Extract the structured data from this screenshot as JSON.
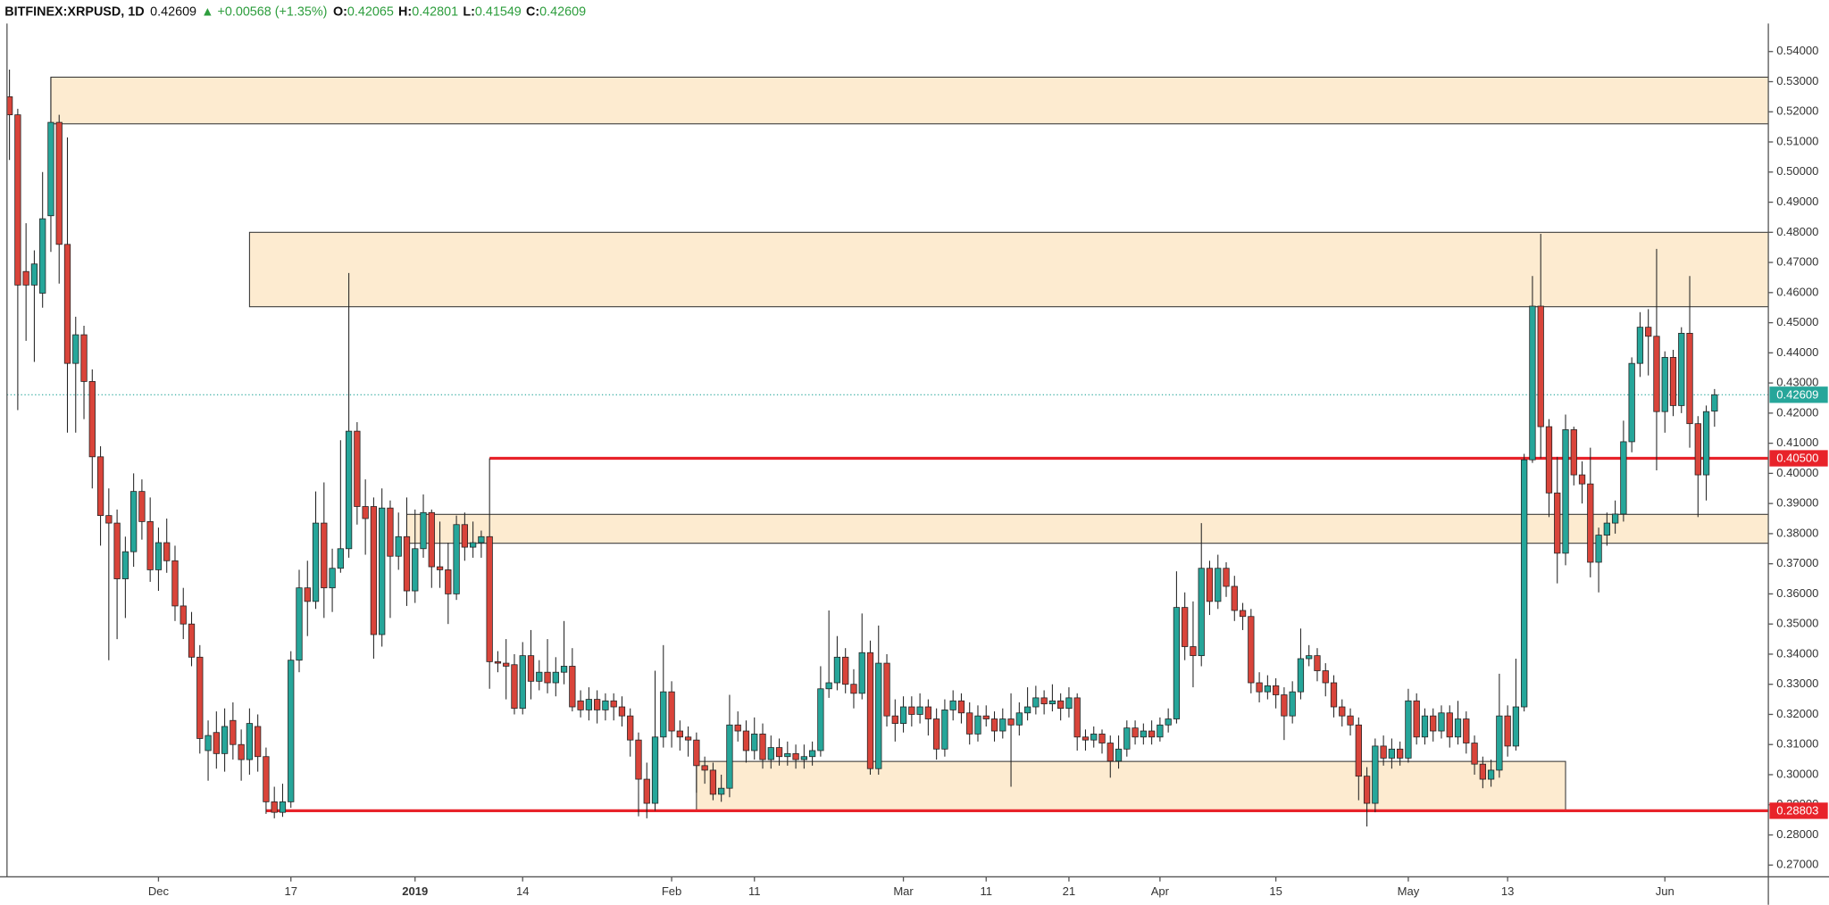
{
  "chart_data": {
    "type": "candlestick",
    "title": "BITFINEX:XRPUSD, 1D",
    "change": "▲ +0.00568 (+1.35%)",
    "ohlc_keys": [
      "O:",
      "H:",
      "L:",
      "C:"
    ],
    "up_color": "#26a69a",
    "down_color": "#d9443a",
    "zone_color": "#fdebd0",
    "level_color": "#e8232a",
    "grid": false,
    "xlim": [
      -0.3,
      212.5
    ],
    "ylim": [
      0.2661,
      0.5493
    ],
    "xticks": [
      {
        "value": 18,
        "label": "Dec"
      },
      {
        "value": 34,
        "label": "17"
      },
      {
        "value": 49,
        "label": "2019",
        "bold": true
      },
      {
        "value": 62,
        "label": "14"
      },
      {
        "value": 80,
        "label": "Feb"
      },
      {
        "value": 90,
        "label": "11"
      },
      {
        "value": 108,
        "label": "Mar"
      },
      {
        "value": 118,
        "label": "11"
      },
      {
        "value": 128,
        "label": "21"
      },
      {
        "value": 139,
        "label": "Apr"
      },
      {
        "value": 153,
        "label": "15"
      },
      {
        "value": 169,
        "label": "May"
      },
      {
        "value": 181,
        "label": "13"
      },
      {
        "value": 200,
        "label": "Jun"
      }
    ],
    "yticks": [
      {
        "value": 0.27,
        "label": "0.27000"
      },
      {
        "value": 0.28,
        "label": "0.28000"
      },
      {
        "value": 0.29,
        "label": "0.29000"
      },
      {
        "value": 0.3,
        "label": "0.30000"
      },
      {
        "value": 0.31,
        "label": "0.31000"
      },
      {
        "value": 0.32,
        "label": "0.32000"
      },
      {
        "value": 0.33,
        "label": "0.33000"
      },
      {
        "value": 0.34,
        "label": "0.34000"
      },
      {
        "value": 0.35,
        "label": "0.35000"
      },
      {
        "value": 0.36,
        "label": "0.36000"
      },
      {
        "value": 0.37,
        "label": "0.37000"
      },
      {
        "value": 0.38,
        "label": "0.38000"
      },
      {
        "value": 0.39,
        "label": "0.39000"
      },
      {
        "value": 0.4,
        "label": "0.40000"
      },
      {
        "value": 0.41,
        "label": "0.41000"
      },
      {
        "value": 0.42,
        "label": "0.42000"
      },
      {
        "value": 0.43,
        "label": "0.43000"
      },
      {
        "value": 0.44,
        "label": "0.44000"
      },
      {
        "value": 0.45,
        "label": "0.45000"
      },
      {
        "value": 0.46,
        "label": "0.46000"
      },
      {
        "value": 0.47,
        "label": "0.47000"
      },
      {
        "value": 0.48,
        "label": "0.48000"
      },
      {
        "value": 0.49,
        "label": "0.49000"
      },
      {
        "value": 0.5,
        "label": "0.50000"
      },
      {
        "value": 0.51,
        "label": "0.51000"
      },
      {
        "value": 0.52,
        "label": "0.52000"
      },
      {
        "value": 0.53,
        "label": "0.53000"
      },
      {
        "value": 0.54,
        "label": "0.54000"
      }
    ],
    "zones": [
      {
        "low": 0.516,
        "high": 0.5315,
        "start": 5
      },
      {
        "low": 0.4553,
        "high": 0.48,
        "start": 29
      },
      {
        "low": 0.3768,
        "high": 0.3864,
        "start": 48
      },
      {
        "low": 0.28803,
        "high": 0.3044,
        "start": 83,
        "end": 188
      }
    ],
    "levels": [
      {
        "value": 0.405,
        "label": "0.40500",
        "start": 58
      },
      {
        "value": 0.28803,
        "label": "0.28803",
        "start": 31
      }
    ],
    "ohlc": [
      [
        0.525,
        0.534,
        0.504,
        0.519
      ],
      [
        0.519,
        0.521,
        0.421,
        0.4625
      ],
      [
        0.467,
        0.483,
        0.444,
        0.4625
      ],
      [
        0.4625,
        0.474,
        0.437,
        0.4695
      ],
      [
        0.4598,
        0.5,
        0.455,
        0.4845
      ],
      [
        0.4855,
        0.5315,
        0.4735,
        0.5165
      ],
      [
        0.5165,
        0.519,
        0.463,
        0.476
      ],
      [
        0.476,
        0.5115,
        0.4135,
        0.4365
      ],
      [
        0.4365,
        0.452,
        0.4135,
        0.446
      ],
      [
        0.446,
        0.449,
        0.418,
        0.4305
      ],
      [
        0.4305,
        0.4345,
        0.395,
        0.4055
      ],
      [
        0.4055,
        0.409,
        0.376,
        0.386
      ],
      [
        0.386,
        0.395,
        0.338,
        0.3835
      ],
      [
        0.3835,
        0.388,
        0.345,
        0.365
      ],
      [
        0.365,
        0.379,
        0.352,
        0.374
      ],
      [
        0.374,
        0.4,
        0.369,
        0.394
      ],
      [
        0.394,
        0.398,
        0.378,
        0.384
      ],
      [
        0.384,
        0.392,
        0.364,
        0.368
      ],
      [
        0.368,
        0.382,
        0.361,
        0.377
      ],
      [
        0.377,
        0.385,
        0.367,
        0.371
      ],
      [
        0.371,
        0.376,
        0.351,
        0.356
      ],
      [
        0.356,
        0.362,
        0.345,
        0.35
      ],
      [
        0.35,
        0.354,
        0.336,
        0.339
      ],
      [
        0.339,
        0.343,
        0.307,
        0.312
      ],
      [
        0.308,
        0.318,
        0.298,
        0.313
      ],
      [
        0.314,
        0.321,
        0.302,
        0.307
      ],
      [
        0.307,
        0.322,
        0.301,
        0.316
      ],
      [
        0.318,
        0.324,
        0.305,
        0.31
      ],
      [
        0.31,
        0.315,
        0.298,
        0.305
      ],
      [
        0.305,
        0.322,
        0.3,
        0.317
      ],
      [
        0.316,
        0.32,
        0.301,
        0.306
      ],
      [
        0.306,
        0.309,
        0.287,
        0.291
      ],
      [
        0.291,
        0.296,
        0.2855,
        0.2875
      ],
      [
        0.2875,
        0.297,
        0.286,
        0.291
      ],
      [
        0.291,
        0.341,
        0.289,
        0.338
      ],
      [
        0.338,
        0.368,
        0.334,
        0.362
      ],
      [
        0.362,
        0.371,
        0.346,
        0.3575
      ],
      [
        0.3575,
        0.394,
        0.355,
        0.3835
      ],
      [
        0.3835,
        0.397,
        0.352,
        0.362
      ],
      [
        0.362,
        0.375,
        0.354,
        0.3685
      ],
      [
        0.3685,
        0.411,
        0.367,
        0.375
      ],
      [
        0.375,
        0.4665,
        0.372,
        0.414
      ],
      [
        0.414,
        0.417,
        0.383,
        0.389
      ],
      [
        0.389,
        0.398,
        0.373,
        0.385
      ],
      [
        0.389,
        0.392,
        0.3385,
        0.3465
      ],
      [
        0.3465,
        0.395,
        0.3425,
        0.3885
      ],
      [
        0.3885,
        0.391,
        0.352,
        0.3725
      ],
      [
        0.3725,
        0.387,
        0.368,
        0.379
      ],
      [
        0.379,
        0.392,
        0.356,
        0.361
      ],
      [
        0.361,
        0.388,
        0.357,
        0.375
      ],
      [
        0.375,
        0.393,
        0.372,
        0.387
      ],
      [
        0.387,
        0.388,
        0.362,
        0.369
      ],
      [
        0.369,
        0.384,
        0.362,
        0.368
      ],
      [
        0.368,
        0.377,
        0.35,
        0.36
      ],
      [
        0.36,
        0.386,
        0.358,
        0.383
      ],
      [
        0.383,
        0.387,
        0.371,
        0.3755
      ],
      [
        0.3755,
        0.384,
        0.372,
        0.377
      ],
      [
        0.377,
        0.381,
        0.372,
        0.379
      ],
      [
        0.379,
        0.405,
        0.3285,
        0.3375
      ],
      [
        0.3375,
        0.341,
        0.334,
        0.337
      ],
      [
        0.337,
        0.345,
        0.325,
        0.336
      ],
      [
        0.3365,
        0.34,
        0.32,
        0.322
      ],
      [
        0.322,
        0.344,
        0.32,
        0.3395
      ],
      [
        0.3395,
        0.348,
        0.325,
        0.331
      ],
      [
        0.331,
        0.338,
        0.328,
        0.334
      ],
      [
        0.334,
        0.345,
        0.327,
        0.3305
      ],
      [
        0.3305,
        0.339,
        0.326,
        0.334
      ],
      [
        0.334,
        0.351,
        0.33,
        0.336
      ],
      [
        0.336,
        0.342,
        0.321,
        0.3225
      ],
      [
        0.3245,
        0.328,
        0.319,
        0.3215
      ],
      [
        0.3215,
        0.329,
        0.318,
        0.325
      ],
      [
        0.325,
        0.328,
        0.317,
        0.3215
      ],
      [
        0.3215,
        0.327,
        0.318,
        0.3245
      ],
      [
        0.3245,
        0.327,
        0.318,
        0.3225
      ],
      [
        0.3225,
        0.326,
        0.316,
        0.3195
      ],
      [
        0.3195,
        0.322,
        0.306,
        0.3115
      ],
      [
        0.3115,
        0.314,
        0.2862,
        0.2985
      ],
      [
        0.2985,
        0.304,
        0.2855,
        0.2905
      ],
      [
        0.2905,
        0.3345,
        0.288,
        0.3125
      ],
      [
        0.3125,
        0.343,
        0.309,
        0.3275
      ],
      [
        0.3275,
        0.331,
        0.309,
        0.3145
      ],
      [
        0.3145,
        0.318,
        0.308,
        0.3125
      ],
      [
        0.3125,
        0.316,
        0.306,
        0.3115
      ],
      [
        0.3115,
        0.314,
        0.294,
        0.303
      ],
      [
        0.303,
        0.306,
        0.297,
        0.3015
      ],
      [
        0.3015,
        0.304,
        0.2915,
        0.2935
      ],
      [
        0.2935,
        0.3,
        0.291,
        0.2955
      ],
      [
        0.2955,
        0.3265,
        0.2925,
        0.3165
      ],
      [
        0.3165,
        0.321,
        0.311,
        0.3145
      ],
      [
        0.3145,
        0.318,
        0.304,
        0.308
      ],
      [
        0.308,
        0.319,
        0.305,
        0.3135
      ],
      [
        0.3135,
        0.317,
        0.302,
        0.305
      ],
      [
        0.305,
        0.313,
        0.302,
        0.309
      ],
      [
        0.309,
        0.312,
        0.303,
        0.306
      ],
      [
        0.306,
        0.311,
        0.303,
        0.307
      ],
      [
        0.307,
        0.31,
        0.302,
        0.305
      ],
      [
        0.305,
        0.31,
        0.302,
        0.306
      ],
      [
        0.306,
        0.311,
        0.303,
        0.308
      ],
      [
        0.308,
        0.336,
        0.306,
        0.3285
      ],
      [
        0.3285,
        0.3545,
        0.3255,
        0.3305
      ],
      [
        0.3305,
        0.346,
        0.328,
        0.339
      ],
      [
        0.339,
        0.342,
        0.327,
        0.33
      ],
      [
        0.33,
        0.335,
        0.322,
        0.327
      ],
      [
        0.327,
        0.3535,
        0.325,
        0.3405
      ],
      [
        0.3405,
        0.3445,
        0.3,
        0.302
      ],
      [
        0.302,
        0.3495,
        0.3,
        0.337
      ],
      [
        0.337,
        0.34,
        0.316,
        0.3195
      ],
      [
        0.3195,
        0.325,
        0.311,
        0.317
      ],
      [
        0.317,
        0.326,
        0.314,
        0.3225
      ],
      [
        0.3225,
        0.326,
        0.316,
        0.32
      ],
      [
        0.32,
        0.327,
        0.317,
        0.3225
      ],
      [
        0.3225,
        0.325,
        0.313,
        0.3185
      ],
      [
        0.3185,
        0.322,
        0.305,
        0.3085
      ],
      [
        0.3085,
        0.325,
        0.306,
        0.3215
      ],
      [
        0.3215,
        0.328,
        0.318,
        0.3245
      ],
      [
        0.3245,
        0.327,
        0.317,
        0.3205
      ],
      [
        0.3205,
        0.324,
        0.31,
        0.3135
      ],
      [
        0.3135,
        0.323,
        0.311,
        0.3195
      ],
      [
        0.3195,
        0.323,
        0.316,
        0.3185
      ],
      [
        0.3185,
        0.321,
        0.311,
        0.3145
      ],
      [
        0.3145,
        0.322,
        0.312,
        0.3185
      ],
      [
        0.3185,
        0.327,
        0.296,
        0.3165
      ],
      [
        0.3165,
        0.324,
        0.313,
        0.3205
      ],
      [
        0.3205,
        0.329,
        0.318,
        0.3225
      ],
      [
        0.3225,
        0.3295,
        0.32,
        0.3255
      ],
      [
        0.3255,
        0.328,
        0.32,
        0.3235
      ],
      [
        0.3235,
        0.33,
        0.321,
        0.3245
      ],
      [
        0.3245,
        0.327,
        0.318,
        0.322
      ],
      [
        0.322,
        0.329,
        0.319,
        0.3255
      ],
      [
        0.3255,
        0.327,
        0.308,
        0.3125
      ],
      [
        0.3125,
        0.315,
        0.308,
        0.3115
      ],
      [
        0.3115,
        0.316,
        0.309,
        0.3135
      ],
      [
        0.3135,
        0.315,
        0.307,
        0.3105
      ],
      [
        0.3105,
        0.313,
        0.299,
        0.3045
      ],
      [
        0.3045,
        0.313,
        0.302,
        0.3085
      ],
      [
        0.3085,
        0.318,
        0.306,
        0.3155
      ],
      [
        0.3155,
        0.318,
        0.31,
        0.3125
      ],
      [
        0.3125,
        0.317,
        0.31,
        0.3145
      ],
      [
        0.3145,
        0.318,
        0.31,
        0.3125
      ],
      [
        0.3125,
        0.319,
        0.311,
        0.3165
      ],
      [
        0.3165,
        0.322,
        0.314,
        0.3185
      ],
      [
        0.3185,
        0.3675,
        0.317,
        0.3555
      ],
      [
        0.3555,
        0.3605,
        0.338,
        0.3425
      ],
      [
        0.3425,
        0.3575,
        0.329,
        0.3395
      ],
      [
        0.3395,
        0.3835,
        0.336,
        0.3685
      ],
      [
        0.3685,
        0.371,
        0.353,
        0.3575
      ],
      [
        0.3575,
        0.373,
        0.355,
        0.3685
      ],
      [
        0.3685,
        0.3705,
        0.359,
        0.3625
      ],
      [
        0.3625,
        0.366,
        0.351,
        0.3545
      ],
      [
        0.3545,
        0.357,
        0.348,
        0.3525
      ],
      [
        0.3525,
        0.355,
        0.327,
        0.3305
      ],
      [
        0.3305,
        0.334,
        0.324,
        0.3275
      ],
      [
        0.3275,
        0.333,
        0.325,
        0.3295
      ],
      [
        0.3295,
        0.332,
        0.322,
        0.3265
      ],
      [
        0.3265,
        0.329,
        0.3115,
        0.3195
      ],
      [
        0.3195,
        0.331,
        0.317,
        0.3275
      ],
      [
        0.3275,
        0.3485,
        0.325,
        0.3385
      ],
      [
        0.3385,
        0.343,
        0.336,
        0.3395
      ],
      [
        0.3395,
        0.342,
        0.331,
        0.3345
      ],
      [
        0.3345,
        0.337,
        0.326,
        0.3305
      ],
      [
        0.3305,
        0.333,
        0.319,
        0.3225
      ],
      [
        0.3225,
        0.325,
        0.316,
        0.3195
      ],
      [
        0.3195,
        0.322,
        0.313,
        0.3165
      ],
      [
        0.3165,
        0.319,
        0.2915,
        0.2995
      ],
      [
        0.2995,
        0.3025,
        0.2828,
        0.2905
      ],
      [
        0.2905,
        0.312,
        0.2875,
        0.3095
      ],
      [
        0.3095,
        0.313,
        0.303,
        0.3055
      ],
      [
        0.3055,
        0.312,
        0.302,
        0.3085
      ],
      [
        0.3085,
        0.311,
        0.303,
        0.3055
      ],
      [
        0.3055,
        0.3285,
        0.304,
        0.3245
      ],
      [
        0.3245,
        0.327,
        0.31,
        0.3125
      ],
      [
        0.3125,
        0.322,
        0.31,
        0.3195
      ],
      [
        0.3195,
        0.322,
        0.311,
        0.3145
      ],
      [
        0.3145,
        0.323,
        0.312,
        0.3205
      ],
      [
        0.3205,
        0.323,
        0.309,
        0.3125
      ],
      [
        0.3125,
        0.3245,
        0.31,
        0.3185
      ],
      [
        0.3185,
        0.321,
        0.307,
        0.3105
      ],
      [
        0.3105,
        0.313,
        0.3,
        0.3035
      ],
      [
        0.3035,
        0.306,
        0.2955,
        0.2985
      ],
      [
        0.2985,
        0.305,
        0.296,
        0.3015
      ],
      [
        0.3015,
        0.3335,
        0.299,
        0.3195
      ],
      [
        0.3195,
        0.323,
        0.306,
        0.3095
      ],
      [
        0.3095,
        0.3385,
        0.308,
        0.3225
      ],
      [
        0.3225,
        0.4065,
        0.321,
        0.4045
      ],
      [
        0.4045,
        0.4655,
        0.4035,
        0.4555
      ],
      [
        0.4555,
        0.4795,
        0.405,
        0.4155
      ],
      [
        0.4155,
        0.418,
        0.3855,
        0.3935
      ],
      [
        0.3935,
        0.4055,
        0.3635,
        0.3735
      ],
      [
        0.3735,
        0.4195,
        0.3695,
        0.4145
      ],
      [
        0.4145,
        0.4155,
        0.396,
        0.3995
      ],
      [
        0.3995,
        0.404,
        0.39,
        0.3965
      ],
      [
        0.3965,
        0.4085,
        0.3655,
        0.3705
      ],
      [
        0.3705,
        0.382,
        0.3605,
        0.3795
      ],
      [
        0.3795,
        0.387,
        0.376,
        0.3835
      ],
      [
        0.3835,
        0.391,
        0.38,
        0.3865
      ],
      [
        0.3865,
        0.4175,
        0.384,
        0.4105
      ],
      [
        0.4105,
        0.4385,
        0.407,
        0.4365
      ],
      [
        0.4365,
        0.4535,
        0.432,
        0.4485
      ],
      [
        0.4485,
        0.4545,
        0.4325,
        0.4455
      ],
      [
        0.4455,
        0.4745,
        0.401,
        0.4205
      ],
      [
        0.4205,
        0.4405,
        0.4135,
        0.4385
      ],
      [
        0.4385,
        0.441,
        0.419,
        0.4225
      ],
      [
        0.4225,
        0.4485,
        0.42,
        0.4465
      ],
      [
        0.4465,
        0.4655,
        0.4085,
        0.4165
      ],
      [
        0.4165,
        0.419,
        0.3855,
        0.3995
      ],
      [
        0.3995,
        0.4225,
        0.391,
        0.4205
      ],
      [
        0.42065,
        0.42801,
        0.41549,
        0.42609
      ]
    ]
  }
}
